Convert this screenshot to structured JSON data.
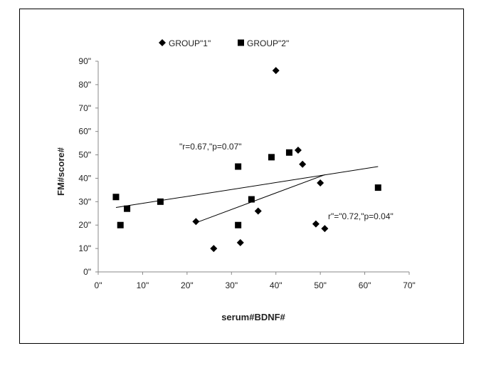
{
  "chart_data": {
    "type": "scatter",
    "title": "",
    "xlabel": "serum#BDNF#",
    "ylabel": "FM#score#",
    "xlim": [
      0,
      70
    ],
    "ylim": [
      0,
      90
    ],
    "x_tick_labels": [
      "0\"",
      "10\"",
      "20\"",
      "30\"",
      "40\"",
      "50\"",
      "60\"",
      "70\""
    ],
    "y_tick_labels": [
      "0\"",
      "10\"",
      "20\"",
      "30\"",
      "40\"",
      "50\"",
      "60\"",
      "70\"",
      "80\"",
      "90\""
    ],
    "x_ticks": [
      0,
      10,
      20,
      30,
      40,
      50,
      60,
      70
    ],
    "y_ticks": [
      0,
      10,
      20,
      30,
      40,
      50,
      60,
      70,
      80,
      90
    ],
    "grid": false,
    "legend_position": "top",
    "series": [
      {
        "name": "GROUP\"1\"",
        "marker": "diamond",
        "color": "#000000",
        "points": [
          {
            "x": 22,
            "y": 21.5
          },
          {
            "x": 26,
            "y": 10
          },
          {
            "x": 32,
            "y": 12.5
          },
          {
            "x": 36,
            "y": 26
          },
          {
            "x": 40,
            "y": 86
          },
          {
            "x": 45,
            "y": 52
          },
          {
            "x": 46,
            "y": 46
          },
          {
            "x": 49,
            "y": 20.5
          },
          {
            "x": 50,
            "y": 38
          },
          {
            "x": 51,
            "y": 18.5
          }
        ],
        "trendline": {
          "x": [
            22,
            51
          ],
          "y": [
            21,
            41.5
          ]
        },
        "annotation": "r\"=\"0.72,\"p=0.04\""
      },
      {
        "name": "GROUP\"2\"",
        "marker": "square",
        "color": "#000000",
        "points": [
          {
            "x": 4,
            "y": 32
          },
          {
            "x": 5,
            "y": 20
          },
          {
            "x": 6.5,
            "y": 27
          },
          {
            "x": 14,
            "y": 30
          },
          {
            "x": 31.5,
            "y": 45
          },
          {
            "x": 31.5,
            "y": 20
          },
          {
            "x": 34.5,
            "y": 31
          },
          {
            "x": 39,
            "y": 49
          },
          {
            "x": 43,
            "y": 51
          },
          {
            "x": 63,
            "y": 36
          }
        ],
        "trendline": {
          "x": [
            4,
            63
          ],
          "y": [
            27.5,
            45
          ]
        },
        "annotation": "\"r=0.67,\"p=0.07\""
      }
    ]
  }
}
